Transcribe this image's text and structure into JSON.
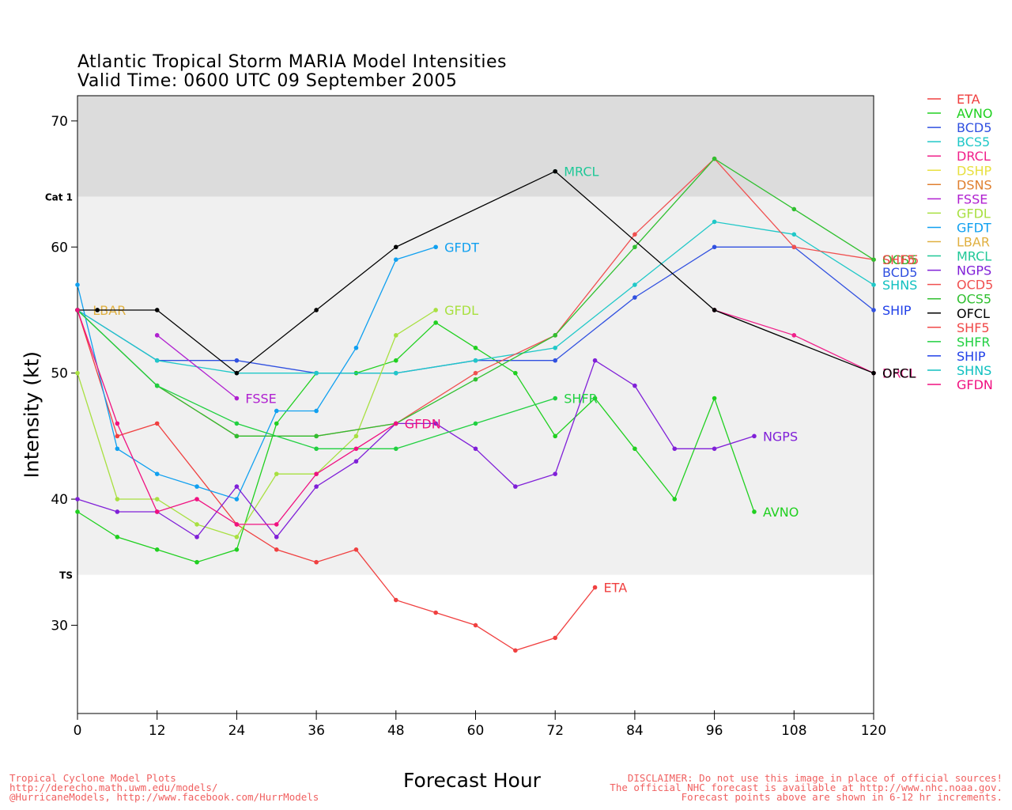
{
  "header": {
    "title_line1": "Atlantic Tropical Storm MARIA Model Intensities",
    "title_line2": "Valid Time: 0600 UTC 09 September 2005"
  },
  "footer": {
    "left": [
      "Tropical Cyclone Model Plots",
      "http://derecho.math.uwm.edu/models/",
      "@HurricaneModels, http://www.facebook.com/HurrModels"
    ],
    "right": [
      "DISCLAIMER: Do not use this image in place of official sources!",
      "The official NHC forecast is available at http://www.nhc.noaa.gov.",
      "Forecast points above are shown in 6-12 hr increments."
    ]
  },
  "chart_data": {
    "type": "line",
    "xlabel": "Forecast Hour",
    "ylabel": "Intensity (kt)",
    "xlim": [
      0,
      120
    ],
    "ylim": [
      23,
      72
    ],
    "xticks": [
      "0",
      "12",
      "24",
      "36",
      "48",
      "60",
      "72",
      "84",
      "96",
      "108",
      "120"
    ],
    "yticks": [
      "30",
      "40",
      "50",
      "60",
      "70"
    ],
    "bands": [
      {
        "label": "Cat 1",
        "from": 64,
        "to": 72,
        "color": "#dcdcdc"
      },
      {
        "label": "TS",
        "from": 34,
        "to": 64,
        "color": "#f0f0f0"
      }
    ],
    "legend_position": "right",
    "series": [
      {
        "name": "ETA",
        "color": "#f04040",
        "points": [
          [
            0,
            55
          ],
          [
            6,
            45
          ],
          [
            12,
            46
          ],
          [
            24,
            38
          ],
          [
            30,
            36
          ],
          [
            36,
            35
          ],
          [
            42,
            36
          ],
          [
            48,
            32
          ],
          [
            54,
            31
          ],
          [
            60,
            30
          ],
          [
            66,
            28
          ],
          [
            72,
            29
          ],
          [
            78,
            33
          ]
        ],
        "label": "ETA",
        "label_at": [
          78,
          33
        ]
      },
      {
        "name": "AVNO",
        "color": "#20d020",
        "points": [
          [
            0,
            39
          ],
          [
            6,
            37
          ],
          [
            12,
            36
          ],
          [
            18,
            35
          ],
          [
            24,
            36
          ],
          [
            30,
            46
          ],
          [
            36,
            50
          ],
          [
            42,
            50
          ],
          [
            48,
            51
          ],
          [
            54,
            54
          ],
          [
            60,
            52
          ],
          [
            66,
            50
          ],
          [
            72,
            45
          ],
          [
            78,
            48
          ],
          [
            84,
            44
          ],
          [
            90,
            40
          ],
          [
            96,
            48
          ],
          [
            102,
            39
          ]
        ],
        "label": "AVNO",
        "label_at": [
          102,
          39
        ]
      },
      {
        "name": "BCD5",
        "color": "#3050e0",
        "points": [
          [
            0,
            55
          ],
          [
            12,
            51
          ],
          [
            24,
            51
          ],
          [
            36,
            50
          ],
          [
            48,
            50
          ],
          [
            60,
            51
          ],
          [
            72,
            51
          ],
          [
            84,
            56
          ],
          [
            96,
            60
          ],
          [
            108,
            60
          ],
          [
            120,
            55
          ]
        ],
        "label": "BCD5",
        "label_at": [
          120,
          58
        ]
      },
      {
        "name": "BCS5",
        "color": "#20c8c8",
        "points": [
          [
            0,
            55
          ],
          [
            12,
            51
          ],
          [
            24,
            50
          ],
          [
            36,
            50
          ],
          [
            48,
            50
          ],
          [
            60,
            51
          ],
          [
            72,
            52
          ],
          [
            84,
            57
          ],
          [
            96,
            62
          ],
          [
            108,
            61
          ],
          [
            120,
            57
          ]
        ],
        "label": "",
        "label_at": [
          120,
          57
        ]
      },
      {
        "name": "DRCL",
        "color": "#f0208a",
        "points": [
          [
            96,
            55
          ],
          [
            108,
            53
          ],
          [
            120,
            50
          ]
        ],
        "label": "DRCL",
        "label_at": [
          120,
          50
        ]
      },
      {
        "name": "DSHP",
        "color": "#e8e040",
        "points": [],
        "label": "",
        "label_at": [
          120,
          57
        ]
      },
      {
        "name": "DSNS",
        "color": "#e08030",
        "points": [],
        "label": "",
        "label_at": [
          120,
          59
        ]
      },
      {
        "name": "FSSE",
        "color": "#b020d0",
        "points": [
          [
            12,
            53
          ],
          [
            24,
            48
          ]
        ],
        "label": "FSSE",
        "label_at": [
          24,
          48
        ]
      },
      {
        "name": "GFDL",
        "color": "#a8e040",
        "points": [
          [
            0,
            50
          ],
          [
            6,
            40
          ],
          [
            12,
            40
          ],
          [
            18,
            38
          ],
          [
            24,
            37
          ],
          [
            30,
            42
          ],
          [
            36,
            42
          ],
          [
            42,
            45
          ],
          [
            48,
            53
          ],
          [
            54,
            55
          ]
        ],
        "label": "GFDL",
        "label_at": [
          54,
          55
        ]
      },
      {
        "name": "GFDT",
        "color": "#10a0f0",
        "points": [
          [
            0,
            57
          ],
          [
            6,
            44
          ],
          [
            12,
            42
          ],
          [
            18,
            41
          ],
          [
            24,
            40
          ],
          [
            30,
            47
          ],
          [
            36,
            47
          ],
          [
            42,
            52
          ],
          [
            48,
            59
          ],
          [
            54,
            60
          ]
        ],
        "label": "GFDT",
        "label_at": [
          54,
          60
        ]
      },
      {
        "name": "LBAR",
        "color": "#e0b040",
        "points": [],
        "label": "LBAR",
        "label_at": [
          1,
          55
        ]
      },
      {
        "name": "MRCL",
        "color": "#20c898",
        "points": [
          [
            72,
            66
          ]
        ],
        "label": "MRCL",
        "label_at": [
          72,
          66
        ]
      },
      {
        "name": "NGPS",
        "color": "#8020d8",
        "points": [
          [
            0,
            40
          ],
          [
            6,
            39
          ],
          [
            12,
            39
          ],
          [
            18,
            37
          ],
          [
            24,
            41
          ],
          [
            30,
            37
          ],
          [
            36,
            41
          ],
          [
            42,
            43
          ],
          [
            48,
            46
          ],
          [
            54,
            46
          ],
          [
            60,
            44
          ],
          [
            66,
            41
          ],
          [
            72,
            42
          ],
          [
            78,
            51
          ],
          [
            84,
            49
          ],
          [
            90,
            44
          ],
          [
            96,
            44
          ],
          [
            102,
            45
          ]
        ],
        "label": "NGPS",
        "label_at": [
          102,
          45
        ]
      },
      {
        "name": "OCD5",
        "color": "#f05050",
        "points": [
          [
            0,
            55
          ],
          [
            12,
            49
          ],
          [
            24,
            45
          ],
          [
            36,
            45
          ],
          [
            48,
            46
          ],
          [
            60,
            50
          ],
          [
            72,
            53
          ],
          [
            84,
            61
          ],
          [
            96,
            67
          ],
          [
            108,
            60
          ],
          [
            120,
            59
          ]
        ],
        "label": "OCD5",
        "label_at": [
          120,
          59
        ]
      },
      {
        "name": "OCS5",
        "color": "#30c030",
        "points": [
          [
            0,
            55
          ],
          [
            12,
            49
          ],
          [
            24,
            45
          ],
          [
            36,
            45
          ],
          [
            48,
            46
          ],
          [
            60,
            49.5
          ],
          [
            72,
            53
          ],
          [
            84,
            60
          ],
          [
            96,
            67
          ],
          [
            108,
            63
          ],
          [
            120,
            59
          ]
        ],
        "label": "OCS5",
        "label_at": [
          120,
          59
        ]
      },
      {
        "name": "OFCL",
        "color": "#000000",
        "points": [
          [
            0,
            55
          ],
          [
            3,
            55
          ],
          [
            12,
            55
          ],
          [
            24,
            50
          ],
          [
            36,
            55
          ],
          [
            48,
            60
          ],
          [
            72,
            66
          ],
          [
            96,
            55
          ],
          [
            120,
            50
          ]
        ],
        "label": "OFCL",
        "label_at": [
          120,
          50
        ]
      },
      {
        "name": "SHF5",
        "color": "#f04848",
        "points": [],
        "label": "SHF5",
        "label_at": [
          120,
          59
        ]
      },
      {
        "name": "SHFR",
        "color": "#20d040",
        "points": [
          [
            0,
            55
          ],
          [
            12,
            49
          ],
          [
            24,
            46
          ],
          [
            36,
            44
          ],
          [
            48,
            44
          ],
          [
            60,
            46
          ],
          [
            72,
            48
          ]
        ],
        "label": "SHFR",
        "label_at": [
          72,
          48
        ]
      },
      {
        "name": "SHIP",
        "color": "#2040e8",
        "points": [],
        "label": "SHIP",
        "label_at": [
          120,
          55
        ]
      },
      {
        "name": "SHNS",
        "color": "#10c0c0",
        "points": [],
        "label": "SHNS",
        "label_at": [
          120,
          57
        ]
      },
      {
        "name": "GFDN",
        "color": "#f01080",
        "points": [
          [
            0,
            55
          ],
          [
            6,
            46
          ],
          [
            12,
            39
          ],
          [
            18,
            40
          ],
          [
            24,
            38
          ],
          [
            30,
            38
          ],
          [
            36,
            42
          ],
          [
            42,
            44
          ],
          [
            48,
            46
          ]
        ],
        "label": "GFDN",
        "label_at": [
          48,
          46
        ]
      }
    ]
  }
}
